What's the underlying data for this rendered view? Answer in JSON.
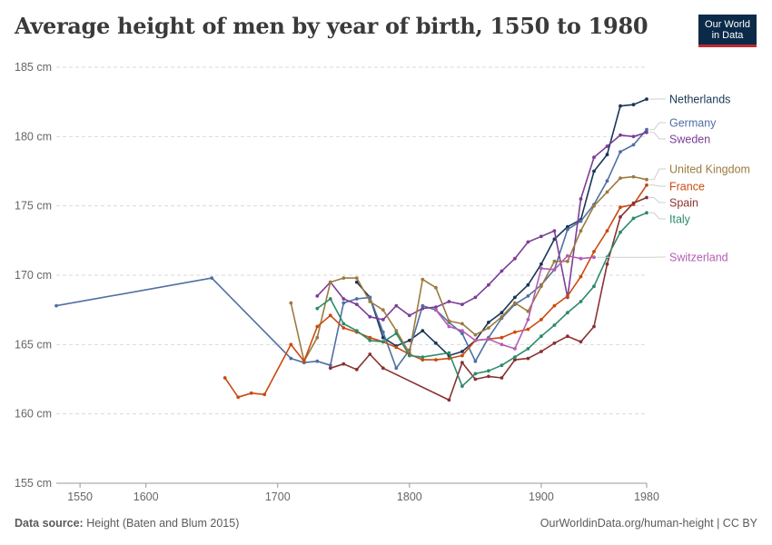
{
  "header": {
    "title": "Average height of men by year of birth, 1550 to 1980",
    "logo_line1": "Our World",
    "logo_line2": "in Data"
  },
  "footer": {
    "source_label": "Data source:",
    "source_text": " Height (Baten and Blum 2015)",
    "right_text": "OurWorldinData.org/human-height | CC BY"
  },
  "chart_data": {
    "type": "line",
    "title": "Average height of men by year of birth, 1550 to 1980",
    "xlabel": "",
    "ylabel": "",
    "ylim": [
      155,
      185
    ],
    "y_ticks": [
      155,
      160,
      165,
      170,
      175,
      180,
      185
    ],
    "y_tick_labels": [
      "155 cm",
      "160 cm",
      "165 cm",
      "170 cm",
      "175 cm",
      "180 cm",
      "185 cm"
    ],
    "x_ticks": [
      1550,
      1600,
      1700,
      1800,
      1900,
      1980
    ],
    "x_tick_labels": [
      "1550",
      "1600",
      "1700",
      "1800",
      "1900",
      "1980"
    ],
    "grid": "horizontal dashed",
    "legend": "right, labels at line ends",
    "series": [
      {
        "name": "Netherlands",
        "color": "#1a3658",
        "points": [
          [
            1760,
            169.5
          ],
          [
            1770,
            168.4
          ],
          [
            1780,
            165.5
          ],
          [
            1790,
            164.9
          ],
          [
            1800,
            165.3
          ],
          [
            1810,
            166.0
          ],
          [
            1820,
            165.1
          ],
          [
            1830,
            164.2
          ],
          [
            1840,
            164.5
          ],
          [
            1850,
            165.3
          ],
          [
            1860,
            166.6
          ],
          [
            1870,
            167.3
          ],
          [
            1880,
            168.4
          ],
          [
            1890,
            169.3
          ],
          [
            1900,
            170.8
          ],
          [
            1910,
            172.6
          ],
          [
            1920,
            173.5
          ],
          [
            1930,
            174.0
          ],
          [
            1940,
            177.5
          ],
          [
            1950,
            178.7
          ],
          [
            1960,
            182.2
          ],
          [
            1970,
            182.3
          ],
          [
            1980,
            182.7
          ]
        ]
      },
      {
        "name": "Germany",
        "color": "#4f6fa3",
        "points": [
          [
            1532,
            167.8
          ],
          [
            1650,
            169.8
          ],
          [
            1710,
            164.0
          ],
          [
            1720,
            163.7
          ],
          [
            1730,
            163.8
          ],
          [
            1740,
            163.5
          ],
          [
            1750,
            168.0
          ],
          [
            1760,
            168.3
          ],
          [
            1770,
            168.4
          ],
          [
            1780,
            165.9
          ],
          [
            1790,
            163.3
          ],
          [
            1800,
            164.6
          ],
          [
            1810,
            167.8
          ],
          [
            1820,
            167.5
          ],
          [
            1830,
            166.6
          ],
          [
            1840,
            165.8
          ],
          [
            1850,
            163.8
          ],
          [
            1860,
            165.5
          ],
          [
            1870,
            166.9
          ],
          [
            1880,
            167.9
          ],
          [
            1890,
            168.5
          ],
          [
            1900,
            169.3
          ],
          [
            1910,
            170.4
          ],
          [
            1920,
            173.3
          ],
          [
            1930,
            173.9
          ],
          [
            1940,
            175.1
          ],
          [
            1950,
            176.8
          ],
          [
            1960,
            178.9
          ],
          [
            1970,
            179.4
          ],
          [
            1980,
            180.5
          ]
        ]
      },
      {
        "name": "Sweden",
        "color": "#7c3d96",
        "points": [
          [
            1730,
            168.5
          ],
          [
            1740,
            169.5
          ],
          [
            1750,
            168.3
          ],
          [
            1760,
            167.9
          ],
          [
            1770,
            167.0
          ],
          [
            1780,
            166.8
          ],
          [
            1790,
            167.8
          ],
          [
            1800,
            167.1
          ],
          [
            1810,
            167.6
          ],
          [
            1820,
            167.7
          ],
          [
            1830,
            168.1
          ],
          [
            1840,
            167.9
          ],
          [
            1850,
            168.4
          ],
          [
            1860,
            169.3
          ],
          [
            1870,
            170.3
          ],
          [
            1880,
            171.2
          ],
          [
            1890,
            172.4
          ],
          [
            1900,
            172.8
          ],
          [
            1910,
            173.2
          ],
          [
            1920,
            168.4
          ],
          [
            1930,
            175.5
          ],
          [
            1940,
            178.5
          ],
          [
            1950,
            179.3
          ],
          [
            1960,
            180.1
          ],
          [
            1970,
            180.0
          ],
          [
            1980,
            180.3
          ]
        ]
      },
      {
        "name": "United Kingdom",
        "color": "#9c7a3f",
        "points": [
          [
            1710,
            168.0
          ],
          [
            1720,
            163.8
          ],
          [
            1730,
            165.5
          ],
          [
            1740,
            169.5
          ],
          [
            1750,
            169.8
          ],
          [
            1760,
            169.8
          ],
          [
            1770,
            168.1
          ],
          [
            1780,
            167.5
          ],
          [
            1790,
            166.0
          ],
          [
            1800,
            164.4
          ],
          [
            1810,
            169.7
          ],
          [
            1820,
            169.1
          ],
          [
            1830,
            166.7
          ],
          [
            1840,
            166.5
          ],
          [
            1850,
            165.7
          ],
          [
            1860,
            166.2
          ],
          [
            1870,
            167.0
          ],
          [
            1880,
            168.0
          ],
          [
            1890,
            167.4
          ],
          [
            1900,
            169.2
          ],
          [
            1910,
            171.0
          ],
          [
            1920,
            171.0
          ],
          [
            1930,
            173.2
          ],
          [
            1940,
            175.0
          ],
          [
            1950,
            176.0
          ],
          [
            1960,
            177.0
          ],
          [
            1970,
            177.1
          ],
          [
            1980,
            176.9
          ]
        ]
      },
      {
        "name": "France",
        "color": "#c94a10",
        "points": [
          [
            1660,
            162.6
          ],
          [
            1670,
            161.2
          ],
          [
            1680,
            161.5
          ],
          [
            1690,
            161.4
          ],
          [
            1710,
            165.0
          ],
          [
            1720,
            163.8
          ],
          [
            1730,
            166.3
          ],
          [
            1740,
            167.1
          ],
          [
            1750,
            166.2
          ],
          [
            1760,
            165.9
          ],
          [
            1770,
            165.5
          ],
          [
            1780,
            165.2
          ],
          [
            1790,
            164.8
          ],
          [
            1800,
            164.3
          ],
          [
            1810,
            163.9
          ],
          [
            1820,
            163.9
          ],
          [
            1830,
            164.0
          ],
          [
            1840,
            164.2
          ],
          [
            1850,
            165.3
          ],
          [
            1860,
            165.4
          ],
          [
            1870,
            165.5
          ],
          [
            1880,
            165.9
          ],
          [
            1890,
            166.1
          ],
          [
            1900,
            166.8
          ],
          [
            1910,
            167.8
          ],
          [
            1920,
            168.5
          ],
          [
            1930,
            169.9
          ],
          [
            1940,
            171.7
          ],
          [
            1950,
            173.2
          ],
          [
            1960,
            174.9
          ],
          [
            1970,
            175.1
          ],
          [
            1980,
            176.5
          ]
        ]
      },
      {
        "name": "Spain",
        "color": "#8a3232",
        "points": [
          [
            1740,
            163.3
          ],
          [
            1750,
            163.6
          ],
          [
            1760,
            163.2
          ],
          [
            1770,
            164.3
          ],
          [
            1780,
            163.3
          ],
          [
            1830,
            161.0
          ],
          [
            1840,
            163.7
          ],
          [
            1850,
            162.5
          ],
          [
            1860,
            162.7
          ],
          [
            1870,
            162.6
          ],
          [
            1880,
            163.9
          ],
          [
            1890,
            164.0
          ],
          [
            1900,
            164.5
          ],
          [
            1910,
            165.1
          ],
          [
            1920,
            165.6
          ],
          [
            1930,
            165.2
          ],
          [
            1940,
            166.3
          ],
          [
            1950,
            170.8
          ],
          [
            1960,
            174.2
          ],
          [
            1970,
            175.2
          ],
          [
            1980,
            175.6
          ]
        ]
      },
      {
        "name": "Italy",
        "color": "#2e8a6a",
        "points": [
          [
            1730,
            167.6
          ],
          [
            1740,
            168.3
          ],
          [
            1750,
            166.5
          ],
          [
            1760,
            166.0
          ],
          [
            1770,
            165.3
          ],
          [
            1780,
            165.2
          ],
          [
            1790,
            165.8
          ],
          [
            1800,
            164.2
          ],
          [
            1810,
            164.1
          ],
          [
            1830,
            164.4
          ],
          [
            1840,
            162.0
          ],
          [
            1850,
            162.9
          ],
          [
            1860,
            163.1
          ],
          [
            1870,
            163.5
          ],
          [
            1880,
            164.1
          ],
          [
            1890,
            164.7
          ],
          [
            1900,
            165.6
          ],
          [
            1910,
            166.4
          ],
          [
            1920,
            167.3
          ],
          [
            1930,
            168.1
          ],
          [
            1940,
            169.2
          ],
          [
            1950,
            171.3
          ],
          [
            1960,
            173.1
          ],
          [
            1970,
            174.1
          ],
          [
            1980,
            174.5
          ]
        ]
      },
      {
        "name": "Switzerland",
        "color": "#b45cb4",
        "points": [
          [
            1820,
            167.5
          ],
          [
            1830,
            166.3
          ],
          [
            1840,
            166.0
          ],
          [
            1850,
            165.3
          ],
          [
            1860,
            165.4
          ],
          [
            1870,
            165.0
          ],
          [
            1880,
            164.7
          ],
          [
            1890,
            166.8
          ],
          [
            1900,
            170.5
          ],
          [
            1910,
            170.4
          ],
          [
            1920,
            171.4
          ],
          [
            1930,
            171.2
          ],
          [
            1940,
            171.3
          ]
        ]
      }
    ]
  }
}
